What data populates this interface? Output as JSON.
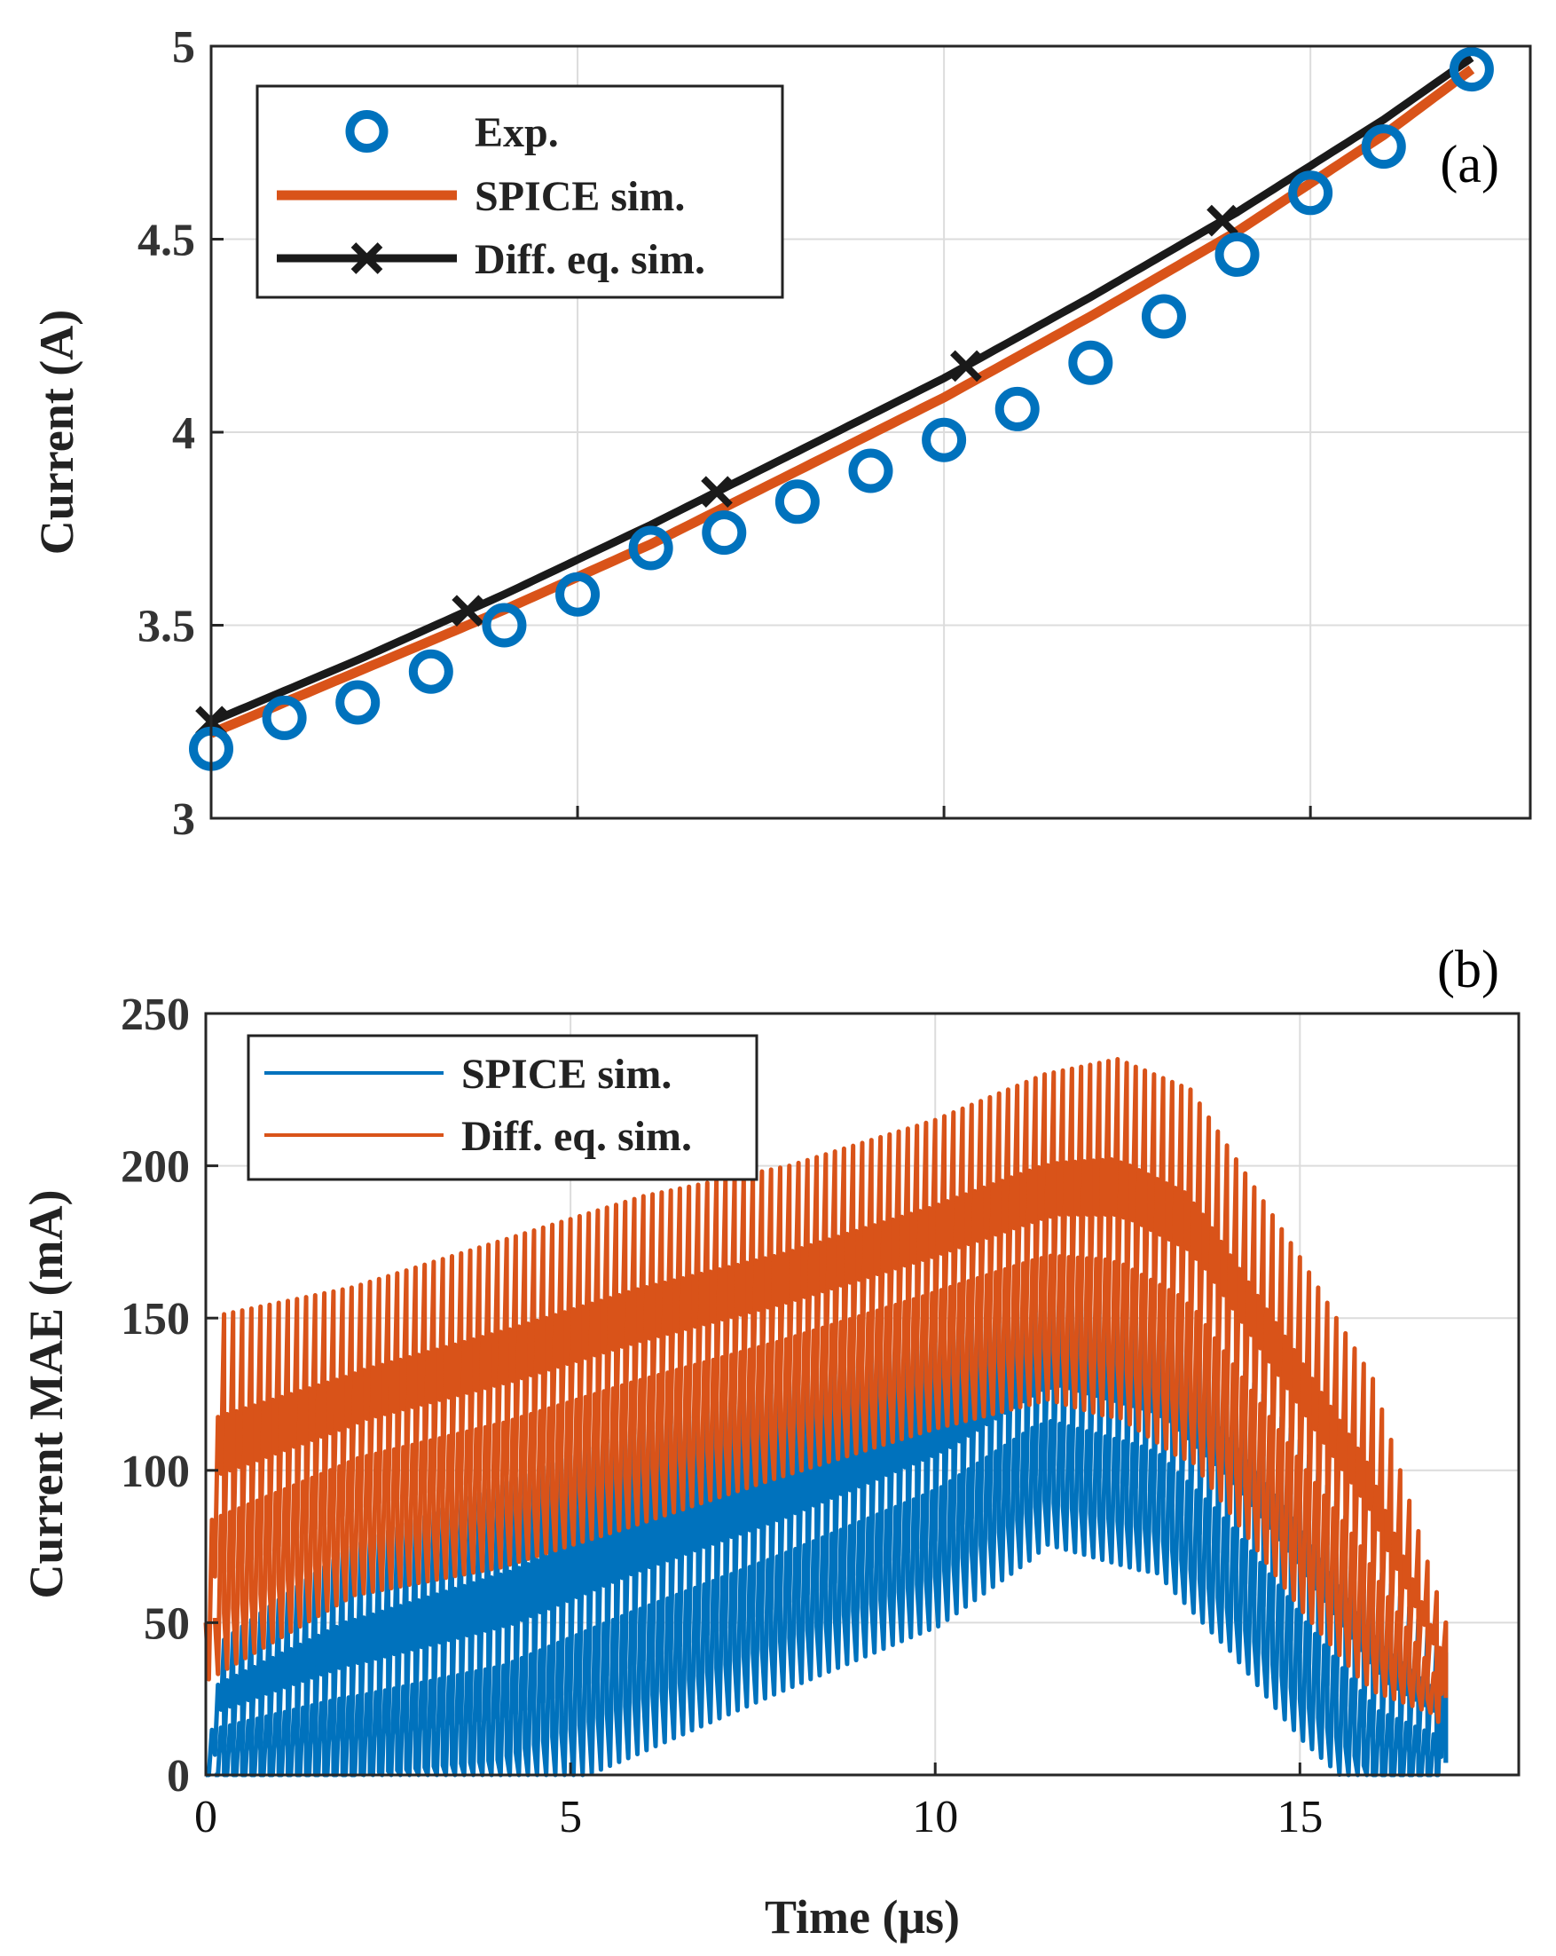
{
  "colors": {
    "exp": "#0072BD",
    "spice": "#D95319",
    "diff": "#1a1a1a",
    "grid": "#dcdcdc",
    "axis": "#262626"
  },
  "chart_data": [
    {
      "panel": "(a)",
      "type": "line",
      "xlim": [
        0,
        18
      ],
      "ylim": [
        3,
        5
      ],
      "xticks": [
        0,
        5,
        10,
        15
      ],
      "yticks": [
        3,
        3.5,
        4,
        4.5,
        5
      ],
      "ytick_labels": [
        "3",
        "3.5",
        "4",
        "4.5",
        "5"
      ],
      "ylabel": "Current (A)",
      "xlabel": "",
      "grid": true,
      "legend_position": "top-left",
      "series": [
        {
          "name": "Exp.",
          "style": "markers-circle",
          "color": "#0072BD",
          "x": [
            0,
            1,
            2,
            3,
            4,
            5,
            6,
            7,
            8,
            9,
            10,
            11,
            12,
            13,
            14,
            15,
            16,
            17.2
          ],
          "y": [
            3.18,
            3.26,
            3.3,
            3.38,
            3.5,
            3.58,
            3.7,
            3.74,
            3.82,
            3.9,
            3.98,
            4.06,
            4.18,
            4.3,
            4.46,
            4.62,
            4.74,
            4.94
          ]
        },
        {
          "name": "SPICE sim.",
          "style": "line",
          "color": "#D95319",
          "x": [
            0,
            2,
            4,
            6,
            8,
            10,
            12,
            14,
            16,
            17.2
          ],
          "y": [
            3.22,
            3.38,
            3.54,
            3.71,
            3.9,
            4.09,
            4.3,
            4.52,
            4.77,
            4.94
          ]
        },
        {
          "name": "Diff. eq. sim.",
          "style": "line-x-markers",
          "color": "#1a1a1a",
          "x": [
            0,
            2,
            4,
            6,
            8,
            10,
            12,
            14,
            16,
            17.2
          ],
          "y": [
            3.25,
            3.41,
            3.58,
            3.76,
            3.95,
            4.14,
            4.35,
            4.57,
            4.81,
            4.97
          ],
          "marker_x": [
            0,
            3.5,
            6.9,
            10.3,
            13.8
          ]
        }
      ]
    },
    {
      "panel": "(b)",
      "type": "line",
      "xlim": [
        0,
        18
      ],
      "ylim": [
        0,
        250
      ],
      "xticks": [
        0,
        5,
        10,
        15
      ],
      "yticks": [
        0,
        50,
        100,
        150,
        200,
        250
      ],
      "xlabel": "Time (μs)",
      "ylabel": "Current MAE (mA)",
      "grid": true,
      "legend_position": "top-left",
      "x_end": 17,
      "sawtooth_period": 0.25,
      "series": [
        {
          "name": "SPICE sim.",
          "color": "#0072BD",
          "envelope_x": [
            0,
            2,
            4,
            6,
            8,
            10,
            11.5,
            13,
            14,
            15,
            16,
            17
          ],
          "peak": [
            40,
            75,
            95,
            115,
            130,
            150,
            170,
            160,
            140,
            110,
            70,
            40
          ],
          "trough": [
            0,
            0,
            5,
            25,
            45,
            65,
            90,
            80,
            55,
            25,
            0,
            0
          ]
        },
        {
          "name": "Diff. eq. sim.",
          "color": "#D95319",
          "envelope_x": [
            0,
            2,
            4,
            6,
            8,
            10,
            11.5,
            12.5,
            13.5,
            15,
            16,
            17
          ],
          "peak": [
            150,
            160,
            175,
            190,
            200,
            215,
            230,
            235,
            225,
            170,
            130,
            50
          ],
          "trough": [
            50,
            75,
            85,
            100,
            115,
            130,
            140,
            135,
            120,
            70,
            40,
            20
          ]
        }
      ]
    }
  ]
}
